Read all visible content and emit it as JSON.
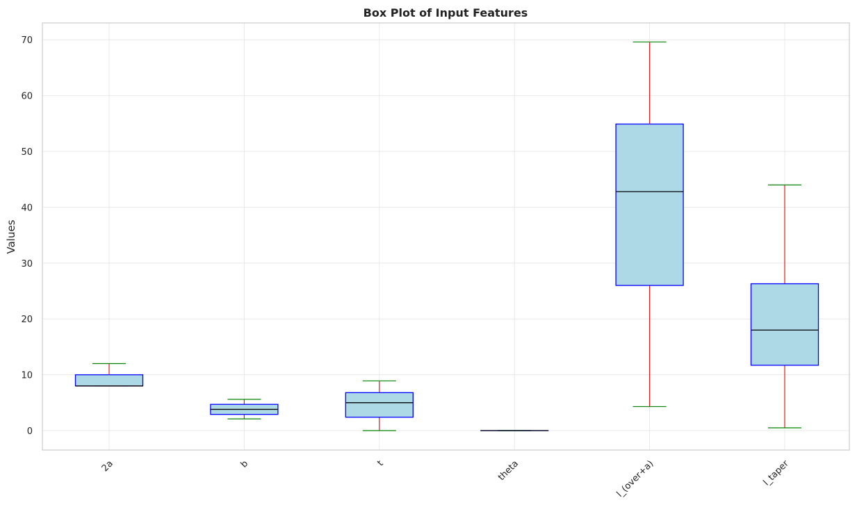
{
  "chart_data": {
    "type": "boxplot",
    "title": "Box Plot of Input Features",
    "xlabel": "",
    "ylabel": "Values",
    "ylim": [
      -3.5,
      73.2
    ],
    "yticks": [
      0,
      10,
      20,
      30,
      40,
      50,
      60,
      70
    ],
    "grid": true,
    "categories": [
      "2a",
      "b",
      "t",
      "theta",
      "l_(over+a)",
      "l_taper"
    ],
    "boxes": [
      {
        "label": "2a",
        "whisker_low": 8.0,
        "q1": 8.0,
        "median": 8.0,
        "q3": 10.0,
        "whisker_high": 12.0
      },
      {
        "label": "b",
        "whisker_low": 2.1,
        "q1": 2.9,
        "median": 3.8,
        "q3": 4.7,
        "whisker_high": 5.6
      },
      {
        "label": "t",
        "whisker_low": 0.0,
        "q1": 2.4,
        "median": 5.0,
        "q3": 6.8,
        "whisker_high": 8.9
      },
      {
        "label": "theta",
        "whisker_low": 0.0,
        "q1": 0.0,
        "median": 0.0,
        "q3": 0.0,
        "whisker_high": 0.0
      },
      {
        "label": "l_(over+a)",
        "whisker_low": 4.3,
        "q1": 26.0,
        "median": 42.8,
        "q3": 54.9,
        "whisker_high": 69.6
      },
      {
        "label": "l_taper",
        "whisker_low": 0.5,
        "q1": 11.7,
        "median": 18.0,
        "q3": 26.3,
        "whisker_high": 44.0
      }
    ],
    "colors": {
      "box_fill": "#add8e6",
      "box_edge": "#0000ff",
      "median": "#000000",
      "whisker": "#e31a1c",
      "cap": "#008000",
      "grid": "#e8e8e8",
      "spine": "#cccccc"
    }
  }
}
